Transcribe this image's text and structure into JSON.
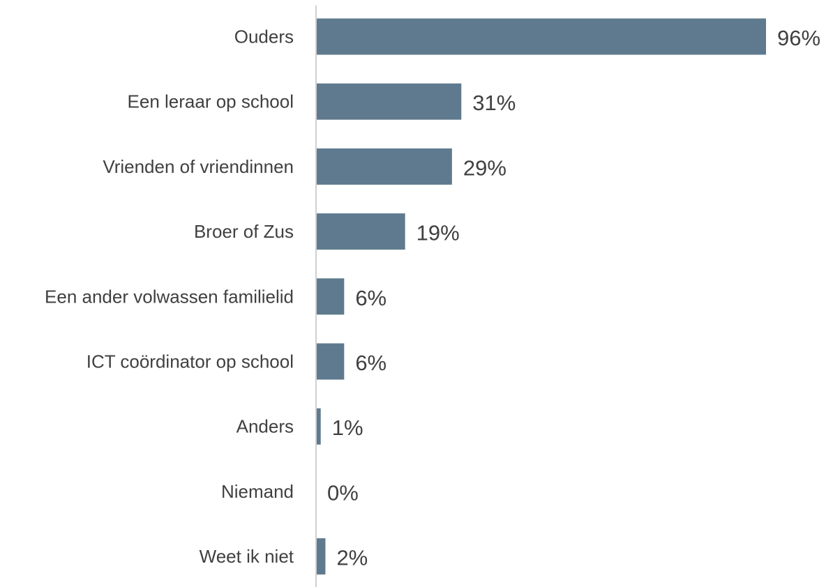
{
  "chart_data": {
    "type": "bar",
    "orientation": "horizontal",
    "categories": [
      "Ouders",
      "Een leraar op school",
      "Vrienden of vriendinnen",
      "Broer of Zus",
      "Een ander volwassen familielid",
      "ICT coördinator op school",
      "Anders",
      "Niemand",
      "Weet ik niet"
    ],
    "values": [
      96,
      31,
      29,
      19,
      6,
      6,
      1,
      0,
      2
    ],
    "data_labels": [
      "96%",
      "31%",
      "29%",
      "19%",
      "6%",
      "6%",
      "1%",
      "0%",
      "2%"
    ],
    "unit": "%",
    "xlim": [
      0,
      96
    ],
    "grid": false,
    "legend": "none",
    "colors": {
      "bar": "#5f7a8e",
      "text": "#404040",
      "axis": "#d0d0d0"
    }
  }
}
